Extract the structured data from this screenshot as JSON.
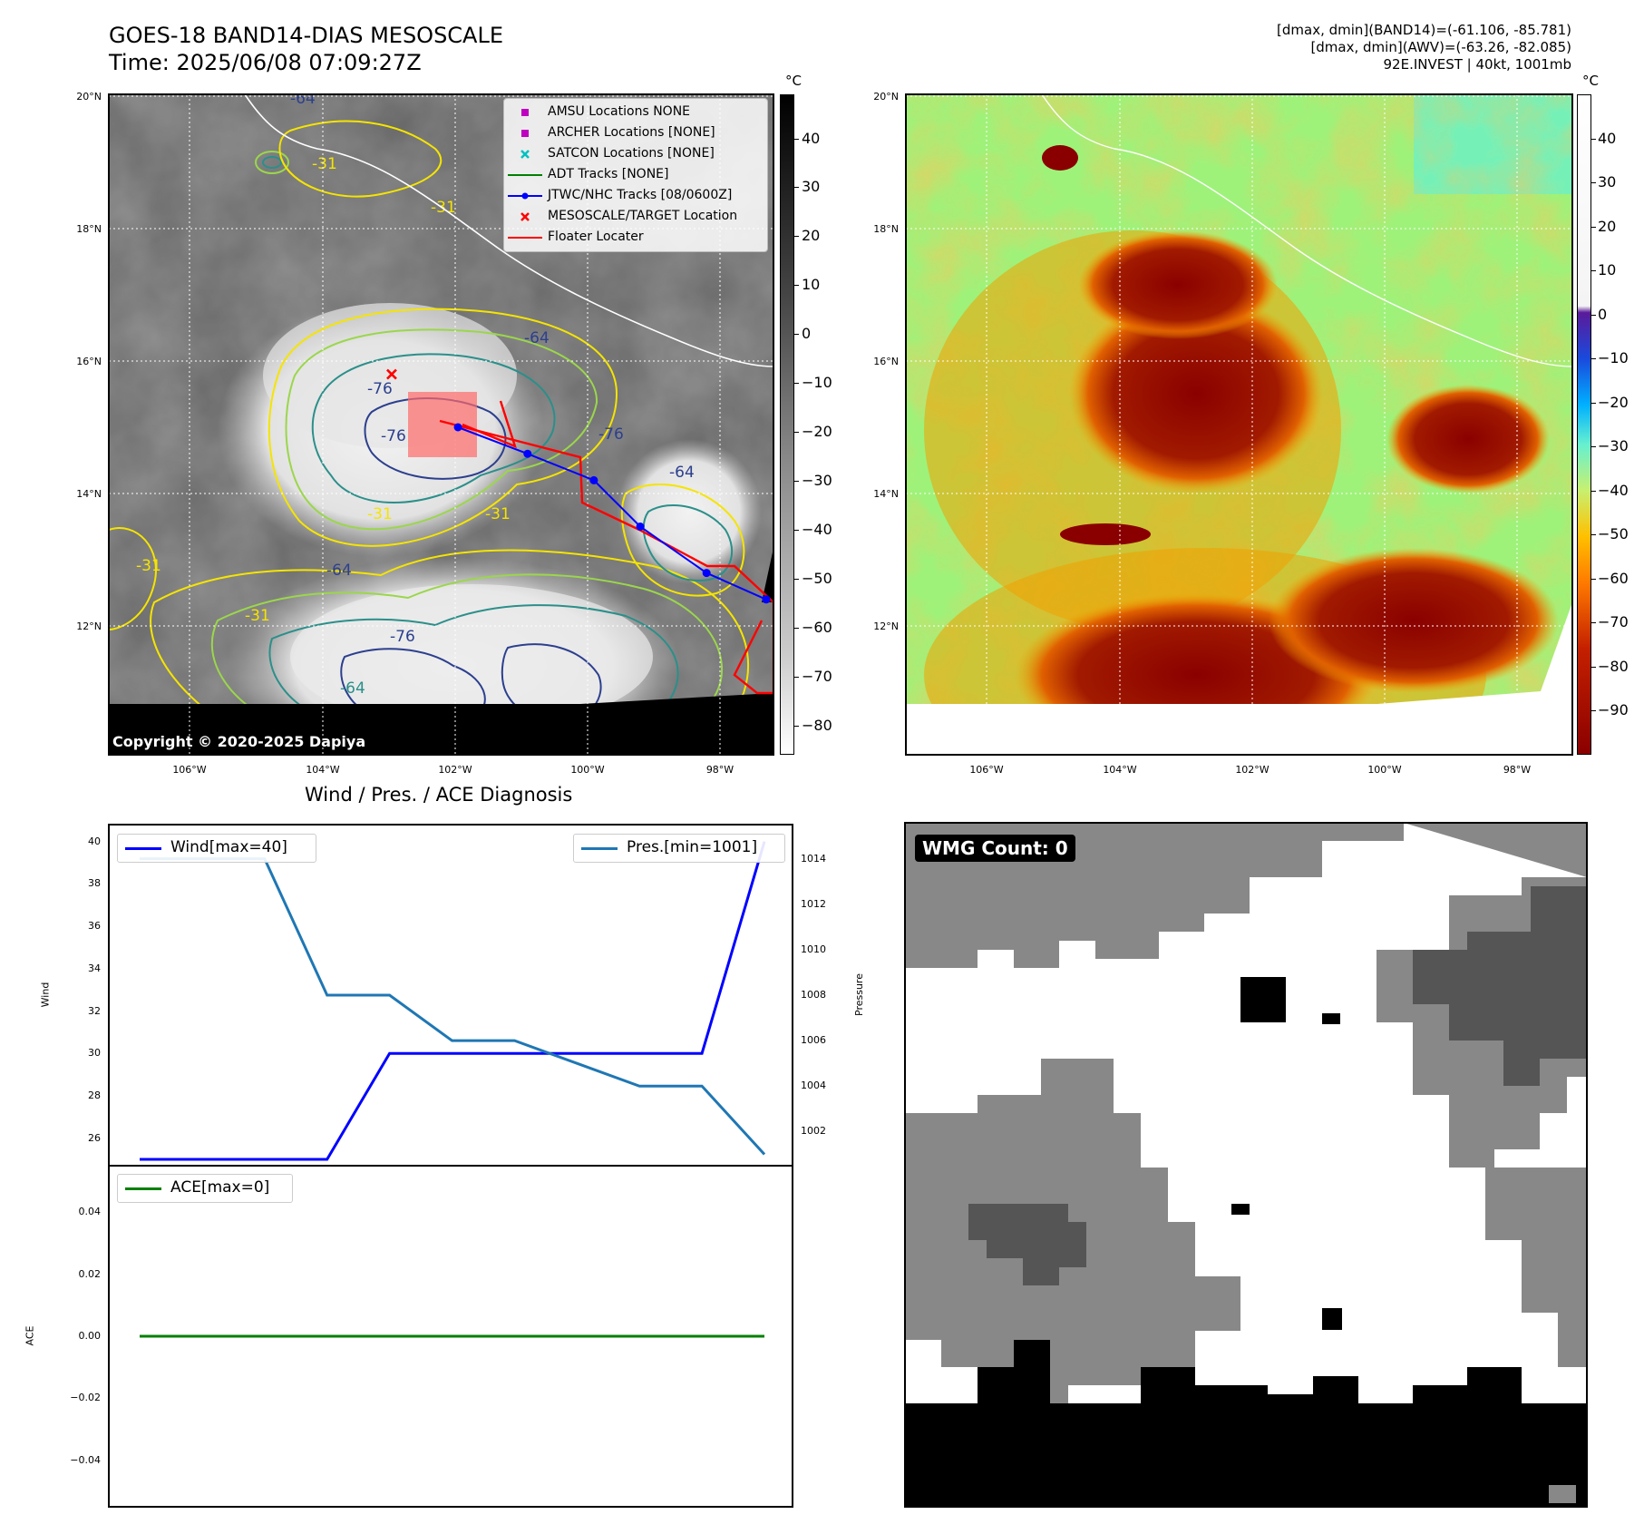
{
  "header": {
    "title_line1": "GOES-18 BAND14-DIAS MESOSCALE",
    "title_line2": "Time: 2025/06/08 07:09:27Z",
    "stats_line1": "[dmax, dmin](BAND14)=(-61.106, -85.781)",
    "stats_line2": "[dmax, dmin](AWV)=(-63.26, -82.085)",
    "stats_line3": "92E.INVEST | 40kt, 1001mb"
  },
  "map": {
    "lat_labels": [
      "20°N",
      "18°N",
      "16°N",
      "14°N",
      "12°N"
    ],
    "lon_labels": [
      "106°W",
      "104°W",
      "102°W",
      "100°W",
      "98°W"
    ],
    "copyright": "Copyright © 2020-2025 Dapiya",
    "contour_labels": [
      "-64",
      "-31",
      "-31",
      "-64",
      "-76",
      "-76",
      "-64",
      "-31",
      "-31",
      "-64",
      "-76",
      "-31",
      "-64",
      "-76",
      "-31"
    ],
    "unit": "°C",
    "colorbar1_ticks": [
      "40",
      "30",
      "20",
      "10",
      "0",
      "−10",
      "−20",
      "−30",
      "−40",
      "−50",
      "−60",
      "−70",
      "−80"
    ],
    "colorbar2_ticks": [
      "40",
      "30",
      "20",
      "10",
      "0",
      "−10",
      "−20",
      "−30",
      "−40",
      "−50",
      "−60",
      "−70",
      "−80",
      "−90"
    ],
    "legend": [
      {
        "label": "AMSU Locations NONE",
        "color": "#c000c0",
        "kind": "square"
      },
      {
        "label": "ARCHER Locations [NONE]",
        "color": "#c000c0",
        "kind": "square"
      },
      {
        "label": "SATCON Locations [NONE]",
        "color": "#00c0c0",
        "kind": "x"
      },
      {
        "label": "ADT Tracks [NONE]",
        "color": "#008000",
        "kind": "line"
      },
      {
        "label": "JTWC/NHC Tracks [08/0600Z]",
        "color": "#0000ff",
        "kind": "line-dot"
      },
      {
        "label": "MESOSCALE/TARGET Location",
        "color": "#ff0000",
        "kind": "x"
      },
      {
        "label": "Floater Locater",
        "color": "#ff0000",
        "kind": "line"
      }
    ],
    "track": [
      {
        "lon": -101.95,
        "lat": 15.0
      },
      {
        "lon": -100.9,
        "lat": 14.6
      },
      {
        "lon": -99.9,
        "lat": 14.2
      },
      {
        "lon": -99.2,
        "lat": 13.5
      },
      {
        "lon": -98.2,
        "lat": 12.8
      },
      {
        "lon": -97.3,
        "lat": 12.4
      }
    ],
    "target": {
      "lon": -102.95,
      "lat": 15.8
    }
  },
  "diagnosis": {
    "title": "Wind / Pres. / ACE Diagnosis",
    "wind_label": "Wind",
    "pressure_label": "Pressure",
    "ace_label": "ACE",
    "legend_wind": "Wind[max=40]",
    "legend_pres": "Pres.[min=1001]",
    "legend_ace": "ACE[max=0]",
    "wind_ticks": [
      "40",
      "38",
      "36",
      "34",
      "32",
      "30",
      "28",
      "26"
    ],
    "pres_ticks": [
      "1014",
      "1012",
      "1010",
      "1008",
      "1006",
      "1004",
      "1002"
    ],
    "ace_ticks": [
      "0.04",
      "0.02",
      "0.00",
      "−0.02",
      "−0.04"
    ]
  },
  "chart_data": [
    {
      "type": "line",
      "series": [
        {
          "name": "Wind[max=40]",
          "color": "#0000ff",
          "axis": "left",
          "values": [
            25,
            25,
            25,
            25,
            30,
            30,
            30,
            30,
            30,
            30,
            40
          ]
        },
        {
          "name": "Pres.[min=1001]",
          "color": "#1f77b4",
          "axis": "right",
          "values": [
            1014,
            1014,
            1014,
            1008,
            1008,
            1006,
            1006,
            1005,
            1004,
            1004,
            1001
          ]
        }
      ],
      "xlabel": "",
      "ylabel": "Wind",
      "y2label": "Pressure",
      "ylim": [
        24.7,
        40.8
      ],
      "y2lim": [
        1000.5,
        1015.5
      ]
    },
    {
      "type": "line",
      "series": [
        {
          "name": "ACE[max=0]",
          "color": "#008000",
          "values": [
            0,
            0,
            0,
            0,
            0,
            0,
            0,
            0,
            0,
            0,
            0
          ]
        }
      ],
      "xlabel": "",
      "ylabel": "ACE",
      "ylim": [
        -0.055,
        0.055
      ]
    }
  ],
  "wmg": {
    "label": "WMG Count: 0"
  }
}
